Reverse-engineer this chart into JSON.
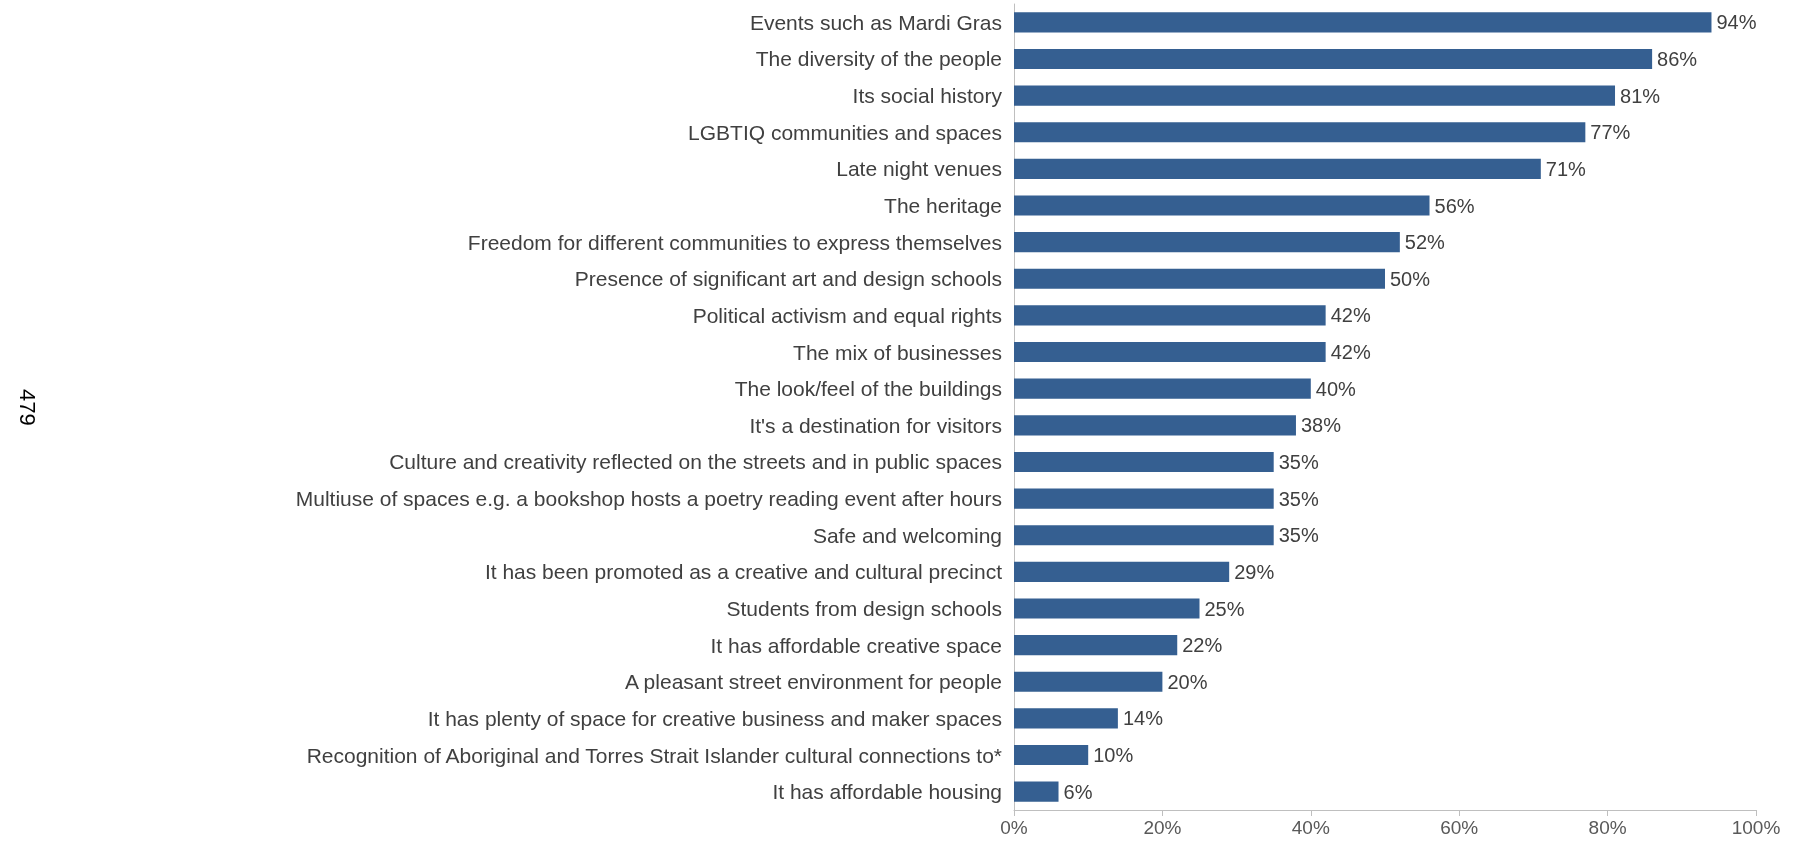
{
  "chart_data": {
    "type": "bar",
    "orientation": "horizontal",
    "annotations": [
      "479"
    ],
    "categories": [
      "Events such as Mardi Gras",
      "The diversity of the people",
      "Its social history",
      "LGBTIQ communities and spaces",
      "Late night venues",
      "The heritage",
      "Freedom for different communities to express themselves",
      "Presence of significant art and design schools",
      "Political activism and equal rights",
      "The mix of businesses",
      "The look/feel of the buildings",
      "It's a destination for visitors",
      "Culture and creativity reflected on the streets and in public spaces",
      "Multiuse of spaces e.g. a bookshop hosts a poetry reading event after hours",
      "Safe and welcoming",
      "It has been promoted as a creative and cultural precinct",
      "Students from design schools",
      "It has affordable creative space",
      "A pleasant street environment for people",
      "It has plenty of space for creative business and maker spaces",
      "Recognition of Aboriginal and Torres Strait Islander cultural connections to*",
      "It has affordable housing"
    ],
    "values": [
      94,
      86,
      81,
      77,
      71,
      56,
      52,
      50,
      42,
      42,
      40,
      38,
      35,
      35,
      35,
      29,
      25,
      22,
      20,
      14,
      10,
      6
    ],
    "value_labels": [
      "94%",
      "86%",
      "81%",
      "77%",
      "71%",
      "56%",
      "52%",
      "50%",
      "42%",
      "42%",
      "40%",
      "38%",
      "35%",
      "35%",
      "35%",
      "29%",
      "25%",
      "22%",
      "20%",
      "14%",
      "10%",
      "6%"
    ],
    "color": "#355f91",
    "xlim": [
      0,
      100
    ],
    "xticks": [
      {
        "value": 0,
        "label": "0%"
      },
      {
        "value": 20,
        "label": "20%"
      },
      {
        "value": 40,
        "label": "40%"
      },
      {
        "value": 60,
        "label": "60%"
      },
      {
        "value": 80,
        "label": "80%"
      },
      {
        "value": 100,
        "label": "100%"
      }
    ],
    "grid": false
  }
}
